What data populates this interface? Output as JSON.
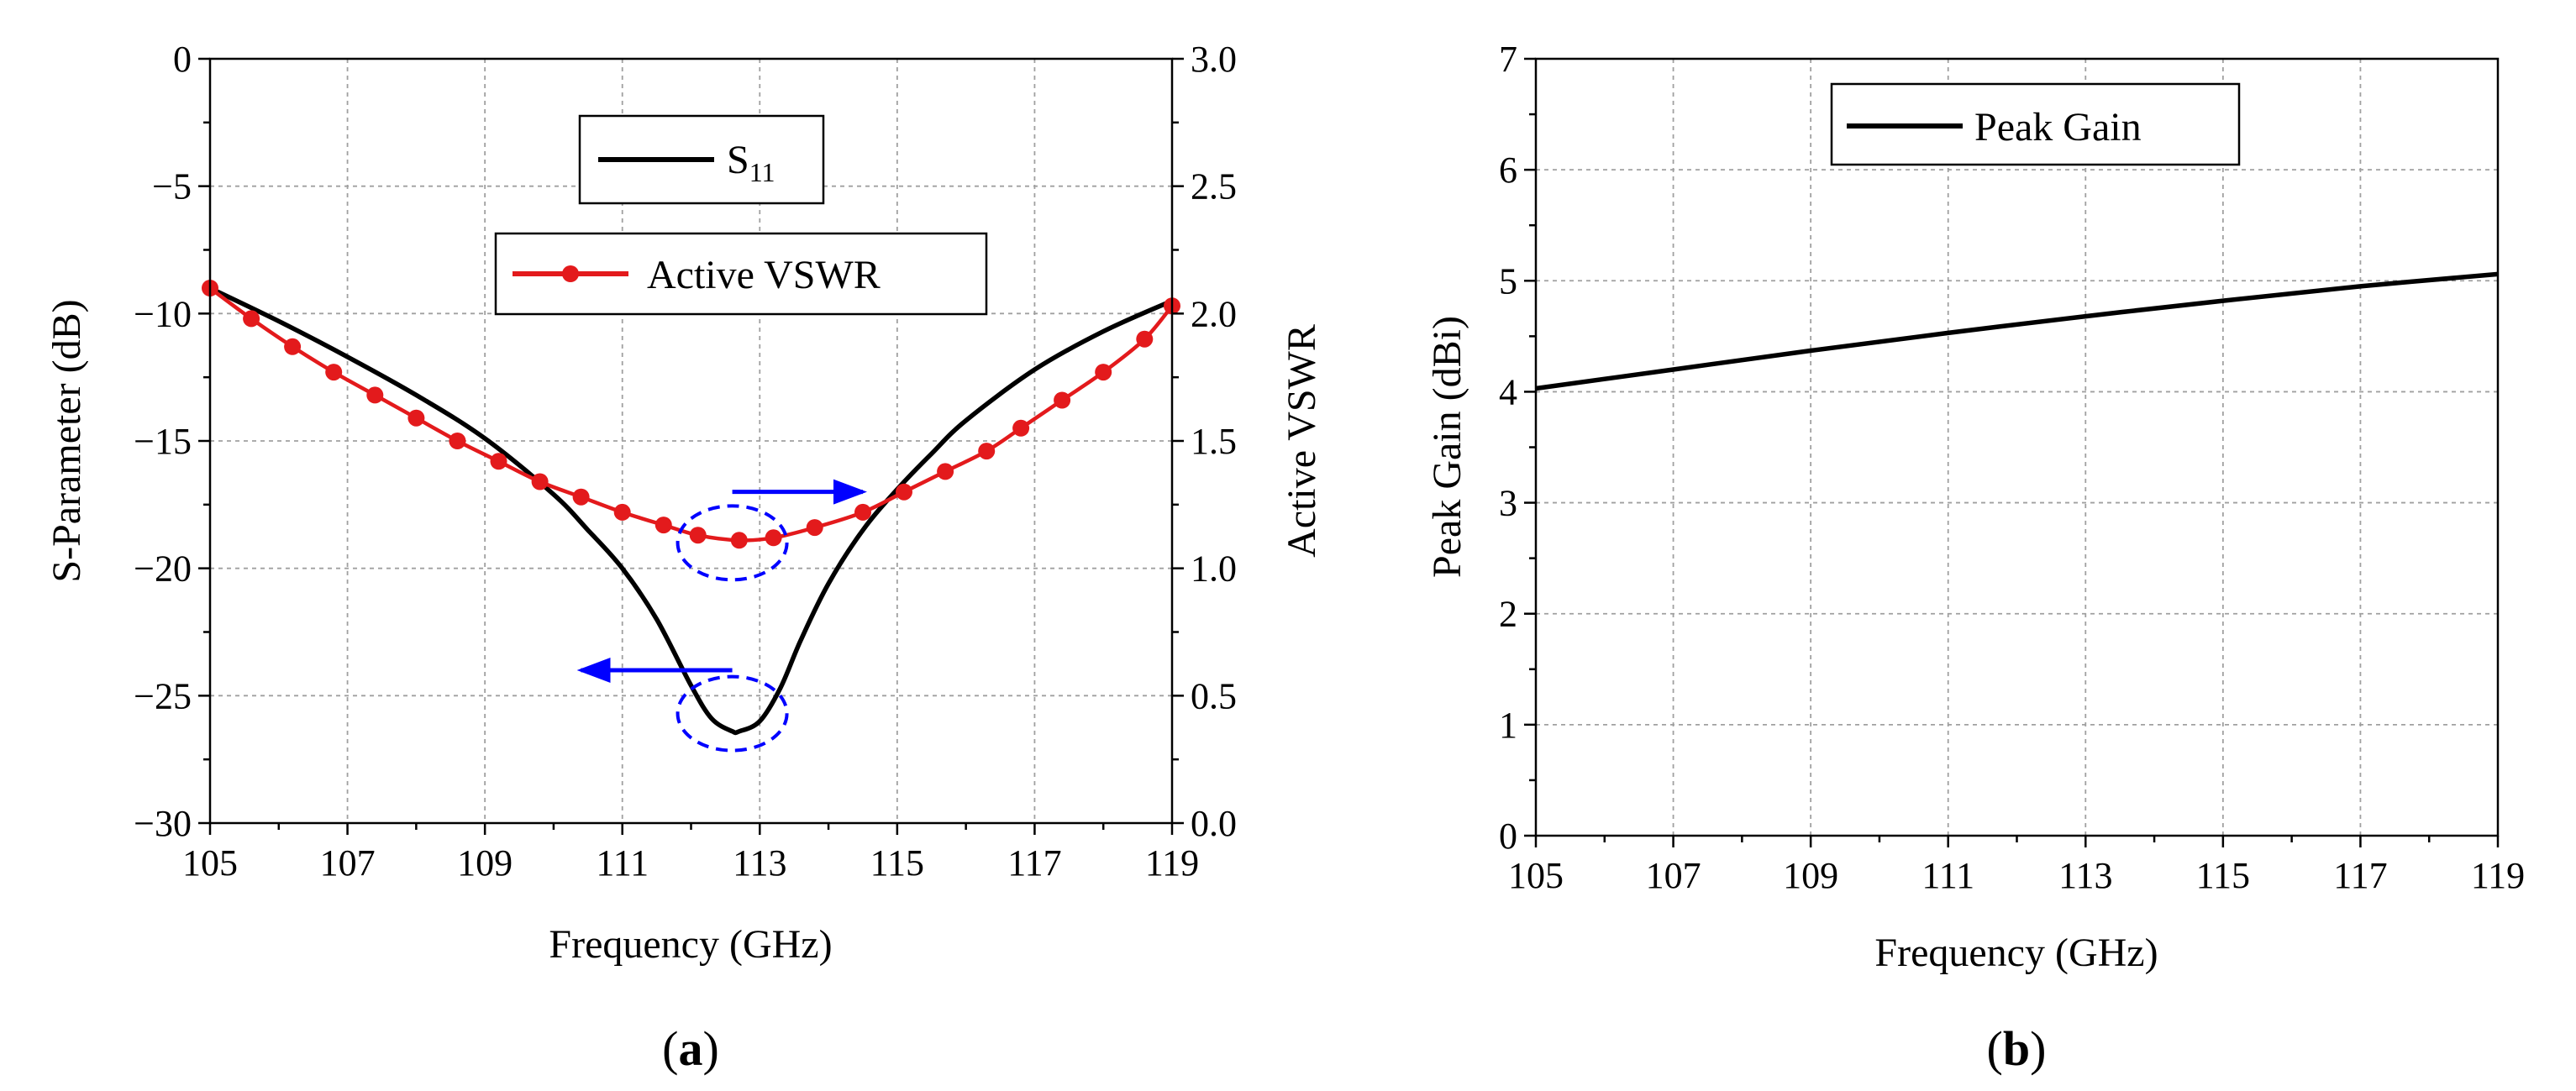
{
  "chart_data": [
    {
      "id": "a",
      "type": "line",
      "caption_open": "(",
      "caption_letter": "a",
      "caption_close": ")",
      "xlabel": "Frequency (GHz)",
      "ylabel": "S-Parameter (dB)",
      "y2label": "Active VSWR",
      "xlim": [
        105,
        119
      ],
      "ylim": [
        -30,
        0
      ],
      "y2lim": [
        0.0,
        3.0
      ],
      "xticks": [
        "105",
        "107",
        "109",
        "111",
        "113",
        "115",
        "117",
        "119"
      ],
      "yticks": [
        "0",
        "−5",
        "−10",
        "−15",
        "−20",
        "−25",
        "−30"
      ],
      "y2ticks": [
        "3.0",
        "2.5",
        "2.0",
        "1.5",
        "1.0",
        "0.5",
        "0.0"
      ],
      "grid": true,
      "series": [
        {
          "name": "S",
          "subscript": "11",
          "axis": "left",
          "color": "#000000",
          "markers": false,
          "x": [
            105,
            106,
            107,
            108,
            109,
            110,
            110.5,
            111,
            111.5,
            112,
            112.3,
            112.6,
            112.7,
            113,
            113.3,
            113.6,
            114,
            114.5,
            115,
            115.5,
            116,
            117,
            118,
            119
          ],
          "y": [
            -9.0,
            -10.3,
            -11.7,
            -13.2,
            -14.9,
            -17.1,
            -18.5,
            -20.0,
            -22.0,
            -24.6,
            -25.9,
            -26.4,
            -26.4,
            -26.0,
            -24.7,
            -22.8,
            -20.6,
            -18.5,
            -16.9,
            -15.5,
            -14.2,
            -12.2,
            -10.7,
            -9.5
          ]
        },
        {
          "name": "Active VSWR",
          "axis": "right",
          "color": "#e31a1c",
          "markers": true,
          "x": [
            105,
            105.6,
            106.2,
            106.8,
            107.4,
            108,
            108.6,
            109.2,
            109.8,
            110.4,
            111,
            111.6,
            112.1,
            112.7,
            113.2,
            113.8,
            114.5,
            115.1,
            115.7,
            116.3,
            116.8,
            117.4,
            118,
            118.6,
            119
          ],
          "y": [
            2.1,
            1.98,
            1.87,
            1.77,
            1.68,
            1.59,
            1.5,
            1.42,
            1.34,
            1.28,
            1.22,
            1.17,
            1.13,
            1.11,
            1.12,
            1.16,
            1.22,
            1.3,
            1.38,
            1.46,
            1.55,
            1.66,
            1.77,
            1.9,
            2.03
          ]
        }
      ],
      "legend": {
        "placement": "top-center"
      },
      "annotations": [
        {
          "type": "ellipse",
          "cx": 112.6,
          "cy": -19.0,
          "color": "#0000ff",
          "style": "dashed"
        },
        {
          "type": "ellipse",
          "cx": 112.6,
          "cy": -25.7,
          "color": "#0000ff",
          "style": "dashed"
        },
        {
          "type": "arrow",
          "direction": "right",
          "from": [
            112.6,
            -17.0
          ],
          "to": [
            114.5,
            -17.0
          ],
          "color": "#0000ff",
          "meaning": "Active VSWR uses right axis"
        },
        {
          "type": "arrow",
          "direction": "left",
          "from": [
            112.6,
            -24.0
          ],
          "to": [
            110.4,
            -24.0
          ],
          "color": "#0000ff",
          "meaning": "S11 uses left axis"
        }
      ]
    },
    {
      "id": "b",
      "type": "line",
      "caption_open": "(",
      "caption_letter": "b",
      "caption_close": ")",
      "xlabel": "Frequency (GHz)",
      "ylabel": "Peak Gain (dBi)",
      "xlim": [
        105,
        119
      ],
      "ylim": [
        0,
        7
      ],
      "xticks": [
        "105",
        "107",
        "109",
        "111",
        "113",
        "115",
        "117",
        "119"
      ],
      "yticks": [
        "7",
        "6",
        "5",
        "4",
        "3",
        "2",
        "1",
        "0"
      ],
      "grid": true,
      "series": [
        {
          "name": "Peak Gain",
          "color": "#000000",
          "markers": false,
          "x": [
            105,
            107,
            109,
            111,
            113,
            115,
            117,
            119
          ],
          "y": [
            4.03,
            4.2,
            4.37,
            4.53,
            4.68,
            4.82,
            4.95,
            5.06
          ]
        }
      ],
      "legend": {
        "placement": "top-left"
      }
    }
  ]
}
